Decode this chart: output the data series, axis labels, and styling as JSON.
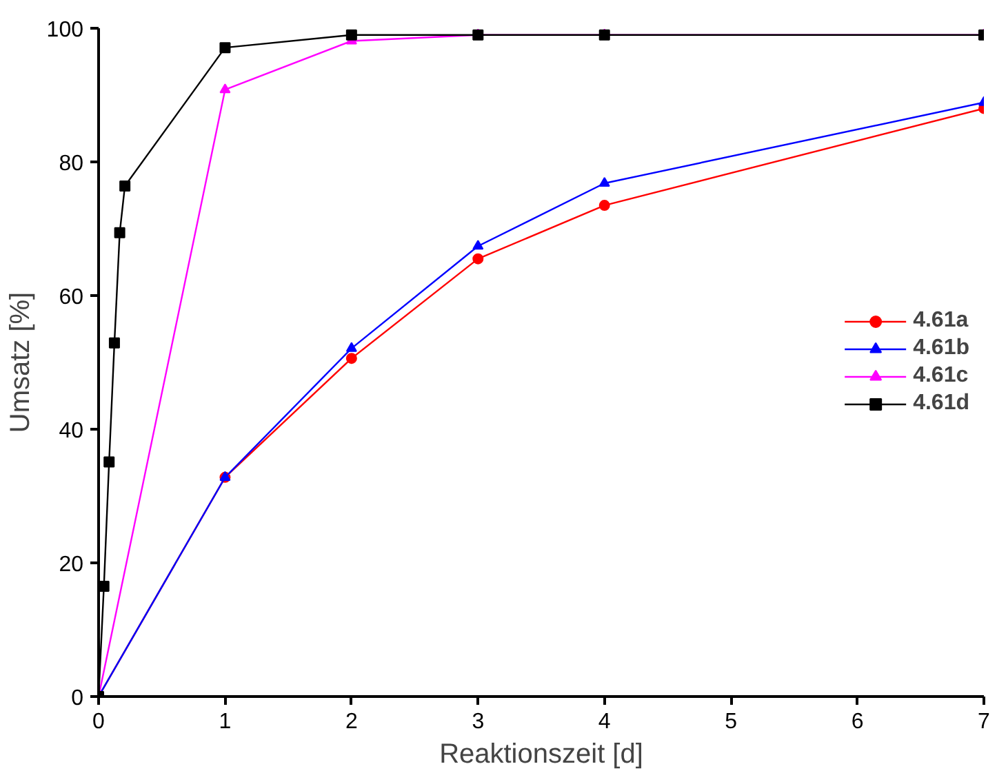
{
  "chart_data": {
    "type": "line",
    "xlabel": "Reaktionszeit [d]",
    "ylabel": "Umsatz [%]",
    "xlim": [
      0,
      7
    ],
    "ylim": [
      0,
      100
    ],
    "xticks": [
      0,
      1,
      2,
      3,
      4,
      5,
      6,
      7
    ],
    "yticks": [
      0,
      20,
      40,
      60,
      80,
      100
    ],
    "grid": false,
    "legend": "right",
    "series": [
      {
        "name": "4.61a",
        "color": "#ff0000",
        "marker": "circle",
        "x": [
          0,
          1,
          2,
          3,
          4,
          7
        ],
        "values": [
          0,
          32.8,
          50.6,
          65.5,
          73.5,
          88.0
        ]
      },
      {
        "name": "4.61b",
        "color": "#0000ff",
        "marker": "triangle",
        "x": [
          0,
          1,
          2,
          3,
          4,
          7
        ],
        "values": [
          0,
          32.8,
          52.1,
          67.4,
          76.8,
          88.9
        ]
      },
      {
        "name": "4.61c",
        "color": "#ff00ff",
        "marker": "triangle",
        "x": [
          0,
          1,
          2,
          3,
          4,
          7
        ],
        "values": [
          0,
          90.8,
          98.1,
          99,
          99,
          99
        ]
      },
      {
        "name": "4.61d",
        "color": "#000000",
        "marker": "square",
        "x": [
          0,
          0.042,
          0.083,
          0.125,
          0.167,
          0.208,
          1,
          2,
          3,
          4,
          7
        ],
        "values": [
          0,
          16.5,
          35.1,
          52.9,
          69.4,
          76.4,
          97.1,
          99,
          99,
          99,
          99
        ]
      }
    ]
  }
}
